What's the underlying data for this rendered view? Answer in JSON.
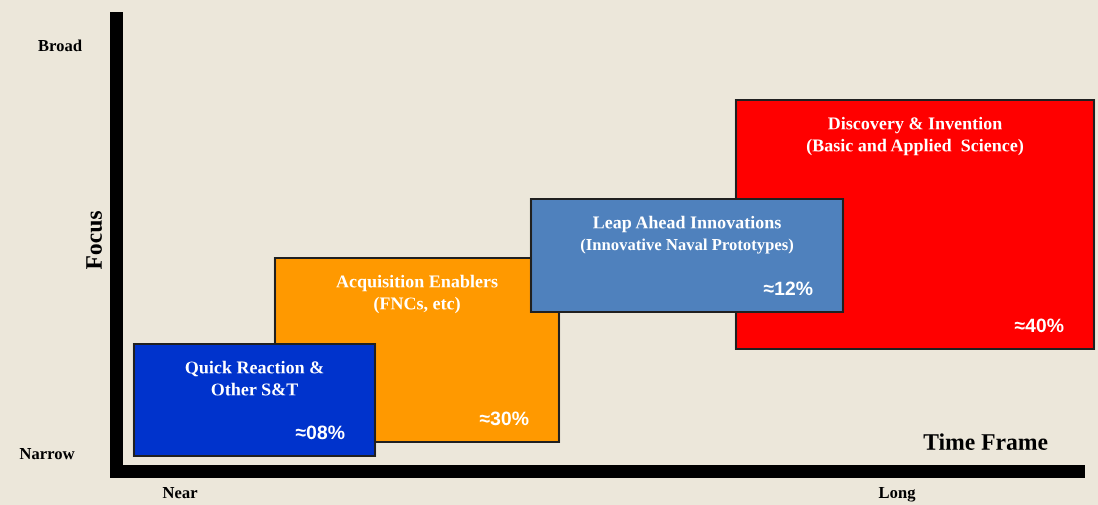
{
  "chart_data": {
    "type": "other",
    "ylabel": "Focus",
    "xlabel": "Time Frame",
    "annotations": [
      "Broad",
      "Narrow",
      "Near",
      "Long"
    ],
    "categories": [
      "Quick Reaction &\nOther S&T",
      "Acquisition Enablers\n(FNCs, etc)",
      "Leap Ahead Innovations\n(Innovative Naval Prototypes)",
      "Discovery & Invention\n(Basic and Applied  Science)"
    ],
    "values": [
      8,
      30,
      12,
      40
    ],
    "value_labels": [
      "≈08%",
      "≈30%",
      "≈12%",
      "≈40%"
    ],
    "colors": [
      "#0033cc",
      "#ff9900",
      "#4f81bd",
      "#ff0000"
    ]
  }
}
